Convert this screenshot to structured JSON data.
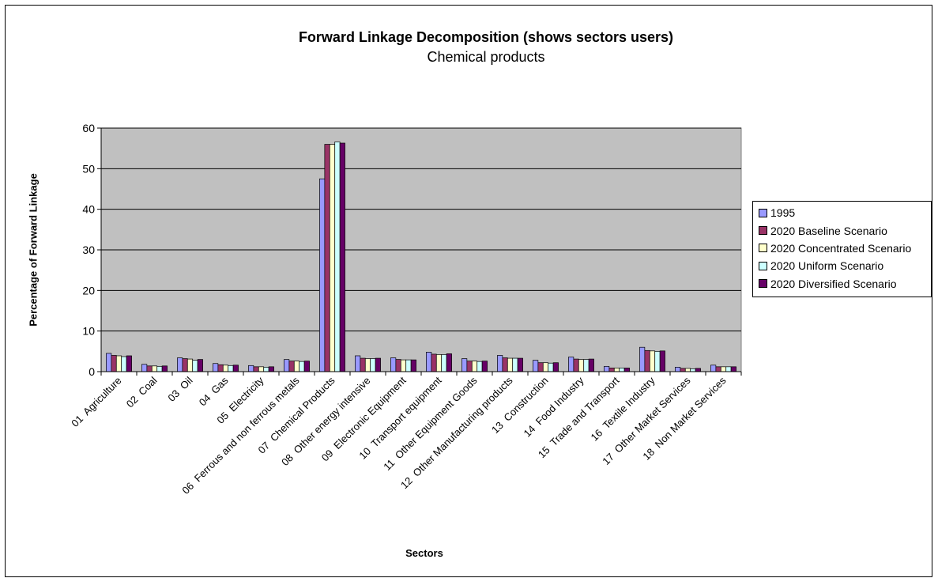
{
  "chart_data": {
    "type": "bar",
    "title": "Forward Linkage Decomposition (shows sectors users)",
    "subtitle": "Chemical products",
    "xlabel": "Sectors",
    "ylabel": "Percentage of Forward Linkage",
    "ylim": [
      0,
      60
    ],
    "yticks": [
      0,
      10,
      20,
      30,
      40,
      50,
      60
    ],
    "grid": true,
    "legend_position": "right",
    "plot_background": "#c0c0c0",
    "categories": [
      "01  Agriculture",
      "02  Coal",
      "03  Oil",
      "04  Gas",
      "05  Electricity",
      "06  Ferrous and non ferrous metals",
      "07  Chemical Products",
      "08  Other energy intensive",
      "09  Electronic Equipment",
      "10  Transport equipment",
      "11  Other Equipment Goods",
      "12  Other Manufacturing products",
      "13  Construction",
      "14  Food Industry",
      "15  Trade and Transport",
      "16  Textile Industry",
      "17  Other Market Services",
      "18  Non Market Services"
    ],
    "series": [
      {
        "name": "1995",
        "color": "#9999ff",
        "values": [
          4.5,
          1.8,
          3.4,
          2.0,
          1.5,
          3.0,
          47.5,
          3.9,
          3.4,
          4.8,
          3.2,
          4.0,
          2.8,
          3.6,
          1.3,
          6.0,
          1.1,
          1.6
        ]
      },
      {
        "name": "2020 Baseline Scenario",
        "color": "#993366",
        "values": [
          4.0,
          1.4,
          3.2,
          1.7,
          1.2,
          2.6,
          56.0,
          3.3,
          3.0,
          4.3,
          2.6,
          3.4,
          2.2,
          3.1,
          0.9,
          5.2,
          0.8,
          1.2
        ]
      },
      {
        "name": "2020 Concentrated Scenario",
        "color": "#ffffcc",
        "values": [
          3.9,
          1.4,
          3.1,
          1.6,
          1.2,
          2.6,
          56.0,
          3.2,
          2.9,
          4.2,
          2.6,
          3.3,
          2.2,
          3.0,
          0.9,
          5.1,
          0.8,
          1.2
        ]
      },
      {
        "name": "2020 Uniform Scenario",
        "color": "#ccffff",
        "values": [
          3.7,
          1.3,
          2.8,
          1.5,
          1.1,
          2.5,
          56.6,
          3.2,
          2.9,
          4.2,
          2.5,
          3.3,
          2.1,
          3.0,
          0.9,
          5.0,
          0.7,
          1.2
        ]
      },
      {
        "name": "2020 Diversified Scenario",
        "color": "#660066",
        "values": [
          3.9,
          1.4,
          3.0,
          1.6,
          1.2,
          2.6,
          56.3,
          3.3,
          2.9,
          4.4,
          2.6,
          3.3,
          2.2,
          3.1,
          0.9,
          5.1,
          0.8,
          1.2
        ]
      }
    ]
  }
}
